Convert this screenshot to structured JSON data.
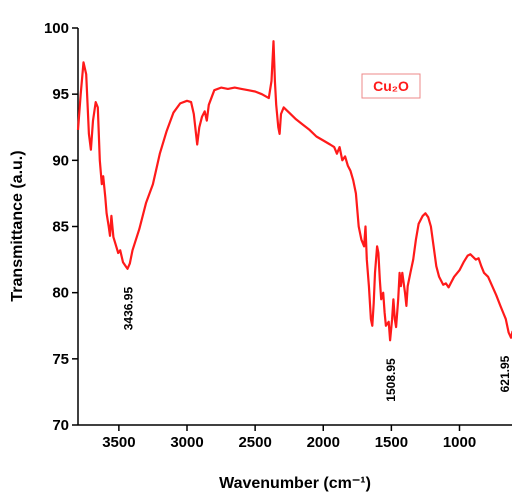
{
  "chart_data": {
    "type": "line",
    "xlabel": "Wavenumber (cm⁻¹)",
    "ylabel": "Transmittance (a.u.)",
    "xlim": [
      3800,
      600
    ],
    "ylim": [
      70,
      100
    ],
    "xticks": [
      3500,
      3000,
      2500,
      2000,
      1500,
      1000
    ],
    "yticks": [
      70,
      75,
      80,
      85,
      90,
      95,
      100
    ],
    "annotations": [
      3436.95,
      1508.95,
      621.95
    ],
    "x": [
      3800,
      3780,
      3760,
      3740,
      3720,
      3705,
      3690,
      3670,
      3655,
      3640,
      3625,
      3615,
      3600,
      3590,
      3575,
      3565,
      3555,
      3540,
      3520,
      3505,
      3490,
      3470,
      3450,
      3437,
      3420,
      3400,
      3350,
      3300,
      3250,
      3200,
      3150,
      3100,
      3050,
      3000,
      2970,
      2950,
      2925,
      2910,
      2890,
      2870,
      2855,
      2840,
      2800,
      2750,
      2700,
      2650,
      2600,
      2550,
      2500,
      2450,
      2400,
      2380,
      2365,
      2355,
      2345,
      2330,
      2320,
      2310,
      2290,
      2250,
      2200,
      2150,
      2100,
      2050,
      2000,
      1950,
      1920,
      1900,
      1880,
      1860,
      1840,
      1820,
      1800,
      1780,
      1760,
      1740,
      1720,
      1700,
      1690,
      1680,
      1665,
      1650,
      1640,
      1630,
      1620,
      1605,
      1595,
      1585,
      1575,
      1560,
      1550,
      1540,
      1520,
      1509,
      1495,
      1485,
      1475,
      1465,
      1450,
      1440,
      1430,
      1420,
      1400,
      1390,
      1380,
      1360,
      1340,
      1320,
      1300,
      1270,
      1250,
      1230,
      1210,
      1190,
      1170,
      1150,
      1120,
      1100,
      1080,
      1060,
      1040,
      1000,
      970,
      940,
      920,
      900,
      880,
      860,
      840,
      820,
      790,
      760,
      730,
      700,
      680,
      660,
      640,
      622,
      610
    ],
    "series": [
      {
        "name": "Cu₂O",
        "color": "#ff1a1a",
        "values": [
          92.3,
          95,
          97.4,
          96.5,
          92,
          90.8,
          93,
          94.4,
          94,
          90,
          88.2,
          88.8,
          87.2,
          86,
          85,
          84.3,
          85.8,
          84.2,
          83.5,
          83,
          83.2,
          82.3,
          82,
          81.8,
          82.2,
          83.2,
          84.8,
          86.8,
          88.2,
          90.5,
          92.2,
          93.6,
          94.3,
          94.5,
          94.4,
          93.5,
          91.2,
          92.5,
          93.3,
          93.7,
          93,
          94.2,
          95.3,
          95.5,
          95.4,
          95.5,
          95.4,
          95.3,
          95.2,
          95,
          94.7,
          96,
          99,
          96,
          94.2,
          92.5,
          92,
          93.5,
          94,
          93.6,
          93.1,
          92.7,
          92.3,
          91.8,
          91.5,
          91.2,
          91,
          90.5,
          91,
          90,
          90.3,
          89.6,
          89.2,
          88.5,
          87.5,
          85,
          84,
          83.5,
          85,
          82.5,
          80.5,
          78,
          77.5,
          79.2,
          81.5,
          83.5,
          83,
          81,
          79.5,
          80,
          78.5,
          77.5,
          77.8,
          76.4,
          78,
          79.5,
          78,
          77.4,
          79.5,
          81.5,
          80.5,
          81.5,
          80,
          79,
          80.5,
          81.5,
          82.5,
          84,
          85.2,
          85.8,
          86,
          85.7,
          85,
          83.5,
          82,
          81.2,
          80.6,
          80.7,
          80.4,
          80.8,
          81.2,
          81.7,
          82.3,
          82.8,
          82.9,
          82.7,
          82.5,
          82.6,
          82,
          81.5,
          81.2,
          80.5,
          79.8,
          79,
          78.5,
          78,
          77,
          76.6,
          77.1
        ]
      }
    ]
  }
}
